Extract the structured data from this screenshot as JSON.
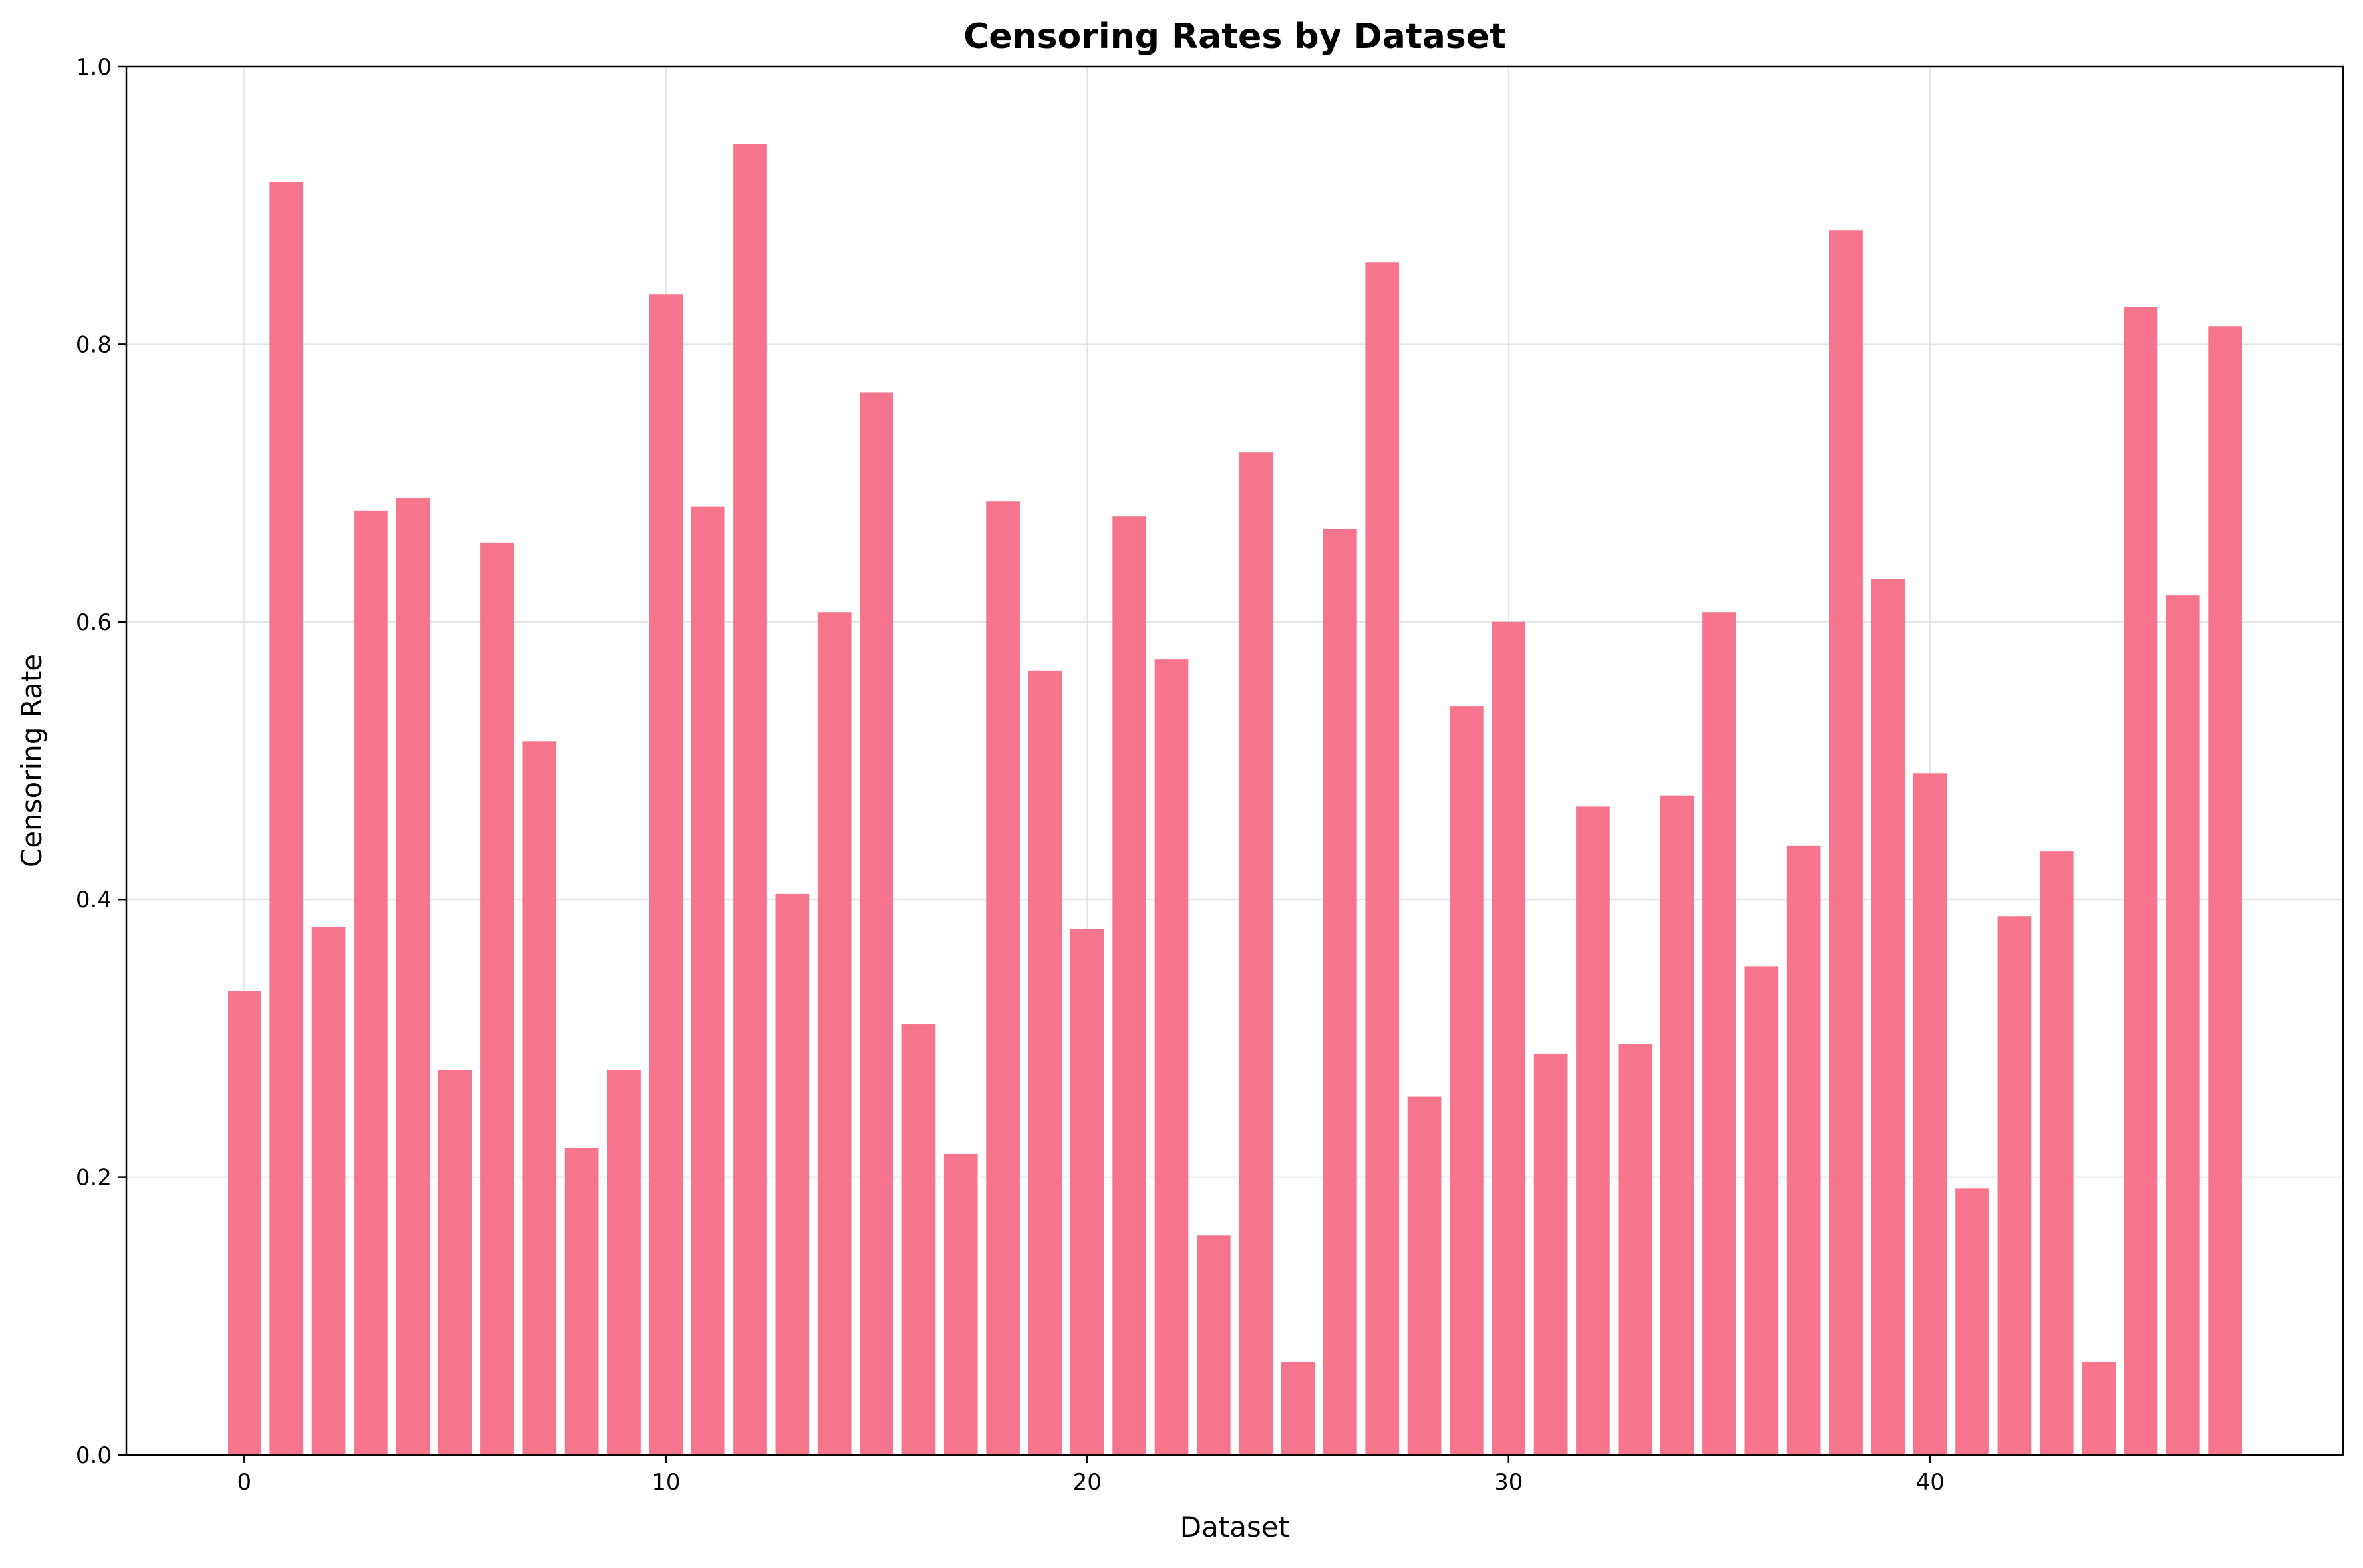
{
  "chart_data": {
    "type": "bar",
    "title": "Censoring Rates by Dataset",
    "xlabel": "Dataset",
    "ylabel": "Censoring Rate",
    "xlim": [
      -2.8,
      49.8
    ],
    "ylim": [
      0.0,
      1.0
    ],
    "x_ticks": [
      0,
      10,
      20,
      30,
      40
    ],
    "y_ticks": [
      0.0,
      0.2,
      0.4,
      0.6,
      0.8,
      1.0
    ],
    "x_tick_labels": [
      "0",
      "10",
      "20",
      "30",
      "40"
    ],
    "y_tick_labels": [
      "0.0",
      "0.2",
      "0.4",
      "0.6",
      "0.8",
      "1.0"
    ],
    "grid": true,
    "bar_color": "#f7758c",
    "x": [
      0,
      1,
      2,
      3,
      4,
      5,
      6,
      7,
      8,
      9,
      10,
      11,
      12,
      13,
      14,
      15,
      16,
      17,
      18,
      19,
      20,
      21,
      22,
      23,
      24,
      25,
      26,
      27,
      28,
      29,
      30,
      31,
      32,
      33,
      34,
      35,
      36,
      37,
      38,
      39,
      40,
      41,
      42,
      43,
      44,
      45,
      46,
      47
    ],
    "values": [
      0.334,
      0.917,
      0.38,
      0.68,
      0.689,
      0.277,
      0.657,
      0.514,
      0.221,
      0.277,
      0.836,
      0.683,
      0.944,
      0.404,
      0.607,
      0.765,
      0.31,
      0.217,
      0.687,
      0.565,
      0.379,
      0.676,
      0.573,
      0.158,
      0.722,
      0.067,
      0.667,
      0.859,
      0.258,
      0.539,
      0.6,
      0.289,
      0.467,
      0.296,
      0.475,
      0.607,
      0.352,
      0.439,
      0.882,
      0.631,
      0.491,
      0.192,
      0.388,
      0.435,
      0.067,
      0.827,
      0.619,
      0.813
    ]
  }
}
